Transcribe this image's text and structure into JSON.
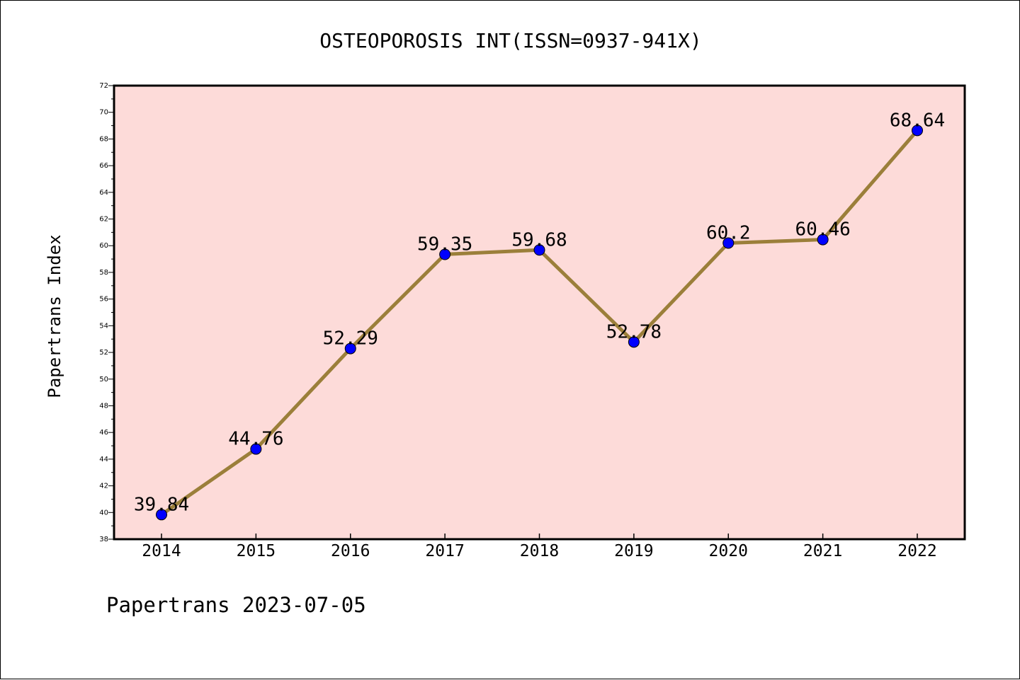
{
  "chart_data": {
    "type": "line",
    "title": "OSTEOPOROSIS INT(ISSN=0937-941X)",
    "xlabel": "",
    "ylabel": "Papertrans Index",
    "categories": [
      "2014",
      "2015",
      "2016",
      "2017",
      "2018",
      "2019",
      "2020",
      "2021",
      "2022"
    ],
    "series": [
      {
        "values": [
          39.84,
          44.76,
          52.29,
          59.35,
          59.68,
          52.78,
          60.2,
          60.46,
          68.64
        ],
        "labels": [
          "39.84",
          "44.76",
          "52.29",
          "59.35",
          "59.68",
          "52.78",
          "60.2",
          "60.46",
          "68.64"
        ],
        "line_color": "#9b7f3a",
        "marker_color": "#0000ff"
      }
    ],
    "ylim": [
      38,
      72
    ],
    "yticks": [
      "38",
      "40",
      "42",
      "44",
      "46",
      "48",
      "50",
      "52",
      "54",
      "56",
      "58",
      "60",
      "62",
      "64",
      "66",
      "68",
      "70",
      "72"
    ],
    "grid": false,
    "legend": "none",
    "plot_background": "#fddbd9",
    "footer": "Papertrans 2023-07-05"
  }
}
